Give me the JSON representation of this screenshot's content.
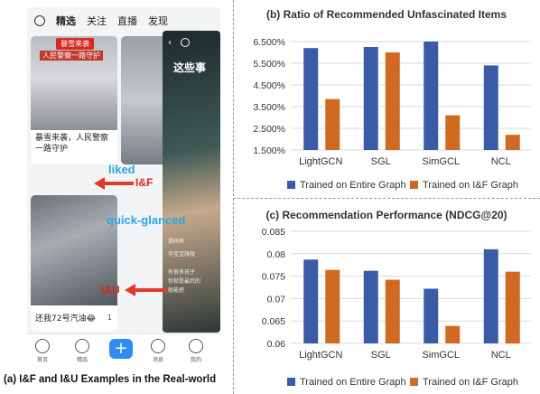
{
  "left": {
    "caption": "(a)  I&F and I&U Examples in the Real-world",
    "tabs": [
      "精选",
      "关注",
      "直播",
      "发现"
    ],
    "card1": {
      "tag": "暴雪来袭",
      "overlay": "人民警察一路守护",
      "text": "暴雪来袭，人民警察一路守护"
    },
    "card2": {
      "text": "还我72号汽油😂",
      "likes": "1"
    },
    "card4": {
      "overlay_top": "这些事",
      "location": "郑州市",
      "lines": [
        "华宝宝旗舰",
        "有很多孩子",
        "你就是最后的",
        "就能把"
      ]
    },
    "annotations": {
      "liked": "liked",
      "if": "I&F",
      "quick": "quick-glanced",
      "iu": "I&U"
    },
    "nav": [
      "首页",
      "精品",
      "",
      "消息",
      "我的"
    ]
  },
  "chart_data": [
    {
      "type": "bar",
      "title": "(b) Ratio of Recommended Unfascinated Items",
      "categories": [
        "LightGCN",
        "SGL",
        "SimGCL",
        "NCL"
      ],
      "series": [
        {
          "name": "Trained on Entire Graph",
          "color": "#3a5ca6",
          "values": [
            6.2,
            6.25,
            6.5,
            5.4
          ]
        },
        {
          "name": "Trained on I&F Graph",
          "color": "#d06a22",
          "values": [
            3.85,
            6.0,
            3.1,
            2.2
          ]
        }
      ],
      "ylim": [
        1.5,
        6.5
      ],
      "yticks": [
        "6.500%",
        "5.500%",
        "4.500%",
        "3.500%",
        "2.500%",
        "1.500%"
      ],
      "ytick_values": [
        6.5,
        5.5,
        4.5,
        3.5,
        2.5,
        1.5
      ],
      "grid": true,
      "legend": "bottom"
    },
    {
      "type": "bar",
      "title": "(c) Recommendation Performance (NDCG@20)",
      "categories": [
        "LightGCN",
        "SGL",
        "SimGCL",
        "NCL"
      ],
      "series": [
        {
          "name": "Trained on Entire Graph",
          "color": "#3a5ca6",
          "values": [
            0.0787,
            0.0762,
            0.0722,
            0.081
          ]
        },
        {
          "name": "Trained on I&F Graph",
          "color": "#d06a22",
          "values": [
            0.0764,
            0.0742,
            0.0639,
            0.076
          ]
        }
      ],
      "ylim": [
        0.06,
        0.085
      ],
      "yticks": [
        "0.085",
        "0.08",
        "0.075",
        "0.07",
        "0.065",
        "0.06"
      ],
      "ytick_values": [
        0.085,
        0.08,
        0.075,
        0.07,
        0.065,
        0.06
      ],
      "grid": true,
      "legend": "bottom"
    }
  ]
}
